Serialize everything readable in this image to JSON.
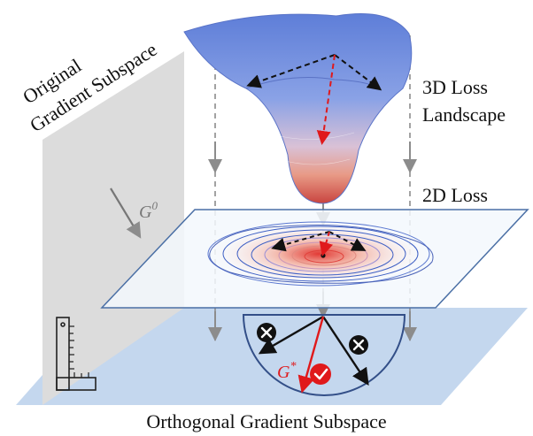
{
  "labels": {
    "original_line1": "Original",
    "original_line2": "Gradient Subspace",
    "loss3d_line1": "3D Loss",
    "loss3d_line2": "Landscape",
    "loss2d": "2D Loss",
    "g0_base": "G",
    "g0_sup": "0",
    "gstar_base": "G",
    "gstar_sup": "*",
    "orthogonal": "Orthogonal Gradient Subspace"
  },
  "colors": {
    "wall": "#dcdcdc",
    "floor": "#c4d7ee",
    "plane_stroke": "#4a6fa5",
    "surface_top": "#6f86d6",
    "surface_bottom": "#d9534f",
    "gradient_red": "#e0191b",
    "arrow_black": "#111111",
    "guide_gray": "#8c8c8c"
  },
  "icons": {
    "reject": "cross-circle-icon",
    "accept": "check-circle-icon",
    "ruler": "set-square-ruler-icon"
  }
}
